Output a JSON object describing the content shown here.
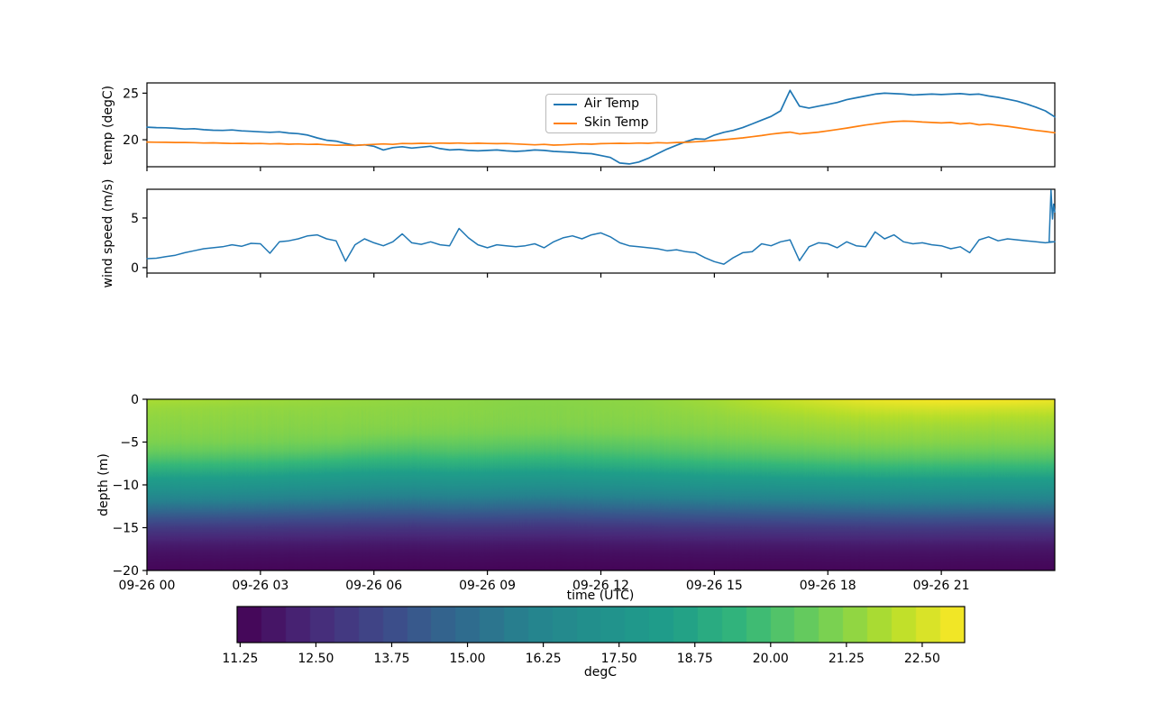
{
  "figure": {
    "background": "#ffffff",
    "accent_blue": "#1f77b4",
    "accent_orange": "#ff7f0e"
  },
  "legend": {
    "items": [
      {
        "label": "Air Temp",
        "color": "#1f77b4"
      },
      {
        "label": "Skin Temp",
        "color": "#ff7f0e"
      }
    ]
  },
  "chart_data": [
    {
      "id": "temp",
      "type": "line",
      "ylabel": "temp (degC)",
      "ylim": [
        17.1,
        26.1
      ],
      "yticks": [
        20,
        25
      ],
      "ytick_labels": [
        "20",
        "25"
      ],
      "xlim_hours": [
        0,
        24
      ],
      "x_hours_step": 0.25,
      "xtick_hours": [
        0,
        3,
        6,
        9,
        12,
        15,
        18,
        21
      ],
      "legend_position": "upper center",
      "series": [
        {
          "name": "Air Temp",
          "color": "#1f77b4",
          "values": [
            21.35,
            21.3,
            21.28,
            21.22,
            21.15,
            21.18,
            21.08,
            21.02,
            21.0,
            21.05,
            20.95,
            20.9,
            20.85,
            20.8,
            20.85,
            20.72,
            20.65,
            20.5,
            20.2,
            19.95,
            19.85,
            19.6,
            19.4,
            19.45,
            19.3,
            18.9,
            19.15,
            19.25,
            19.1,
            19.2,
            19.3,
            19.05,
            18.9,
            18.95,
            18.85,
            18.8,
            18.85,
            18.9,
            18.8,
            18.75,
            18.8,
            18.9,
            18.85,
            18.75,
            18.7,
            18.65,
            18.55,
            18.5,
            18.3,
            18.1,
            17.5,
            17.4,
            17.6,
            18.0,
            18.5,
            19.0,
            19.4,
            19.8,
            20.1,
            20.05,
            20.5,
            20.8,
            21.0,
            21.3,
            21.7,
            22.1,
            22.5,
            23.1,
            25.3,
            23.6,
            23.4,
            23.6,
            23.8,
            24.0,
            24.3,
            24.5,
            24.7,
            24.9,
            25.0,
            24.95,
            24.9,
            24.8,
            24.85,
            24.9,
            24.85,
            24.9,
            24.95,
            24.85,
            24.9,
            24.7,
            24.55,
            24.35,
            24.15,
            23.85,
            23.5,
            23.1,
            22.45
          ]
        },
        {
          "name": "Skin Temp",
          "color": "#ff7f0e",
          "values": [
            19.75,
            19.73,
            19.72,
            19.7,
            19.7,
            19.68,
            19.65,
            19.66,
            19.63,
            19.6,
            19.62,
            19.58,
            19.6,
            19.55,
            19.58,
            19.52,
            19.55,
            19.5,
            19.52,
            19.45,
            19.4,
            19.42,
            19.38,
            19.45,
            19.5,
            19.55,
            19.5,
            19.6,
            19.58,
            19.62,
            19.6,
            19.65,
            19.62,
            19.65,
            19.6,
            19.63,
            19.6,
            19.58,
            19.6,
            19.55,
            19.5,
            19.45,
            19.5,
            19.42,
            19.45,
            19.5,
            19.55,
            19.52,
            19.58,
            19.6,
            19.62,
            19.6,
            19.65,
            19.62,
            19.68,
            19.65,
            19.7,
            19.72,
            19.78,
            19.85,
            19.92,
            20.0,
            20.1,
            20.2,
            20.32,
            20.45,
            20.6,
            20.72,
            20.82,
            20.62,
            20.72,
            20.82,
            20.95,
            21.1,
            21.25,
            21.42,
            21.58,
            21.72,
            21.85,
            21.95,
            22.0,
            21.98,
            21.9,
            21.85,
            21.8,
            21.85,
            21.7,
            21.78,
            21.6,
            21.68,
            21.55,
            21.45,
            21.3,
            21.15,
            21.0,
            20.88,
            20.75
          ]
        }
      ]
    },
    {
      "id": "wind",
      "type": "line",
      "ylabel": "wind speed (m/s)",
      "ylim": [
        -0.55,
        7.9
      ],
      "yticks": [
        0,
        5
      ],
      "ytick_labels": [
        "0",
        "5"
      ],
      "xlim_hours": [
        0,
        24
      ],
      "x_hours_step": 0.25,
      "xtick_hours": [
        0,
        3,
        6,
        9,
        12,
        15,
        18,
        21
      ],
      "series": [
        {
          "name": "wind speed",
          "color": "#1f77b4",
          "values": [
            0.9,
            0.95,
            1.1,
            1.25,
            1.5,
            1.7,
            1.9,
            2.0,
            2.1,
            2.3,
            2.15,
            2.45,
            2.4,
            1.45,
            2.6,
            2.7,
            2.9,
            3.2,
            3.3,
            2.9,
            2.7,
            0.65,
            2.3,
            2.9,
            2.5,
            2.2,
            2.6,
            3.4,
            2.5,
            2.35,
            2.6,
            2.3,
            2.2,
            3.95,
            3.0,
            2.3,
            2.0,
            2.3,
            2.2,
            2.1,
            2.2,
            2.4,
            2.0,
            2.6,
            3.0,
            3.2,
            2.9,
            3.3,
            3.5,
            3.1,
            2.5,
            2.2,
            2.1,
            2.0,
            1.9,
            1.7,
            1.8,
            1.6,
            1.5,
            1.0,
            0.6,
            0.35,
            1.0,
            1.5,
            1.6,
            2.4,
            2.2,
            2.6,
            2.8,
            0.7,
            2.1,
            2.5,
            2.4,
            2.0,
            2.6,
            2.2,
            2.1,
            3.6,
            2.9,
            3.3,
            2.6,
            2.4,
            2.5,
            2.3,
            2.2,
            1.9,
            2.1,
            1.5,
            2.8,
            3.1,
            2.7,
            2.9,
            2.8,
            2.7,
            2.6,
            2.5,
            2.6
          ],
          "tail": [
            [
              23.85,
              2.6
            ],
            [
              23.9,
              7.8
            ],
            [
              23.94,
              4.9
            ],
            [
              23.97,
              6.4
            ],
            [
              24.0,
              5.6
            ]
          ]
        }
      ]
    },
    {
      "id": "depth-temp",
      "type": "heatmap",
      "ylabel": "depth (m)",
      "xlabel": "time (UTC)",
      "ylim": [
        -20,
        0
      ],
      "yticks": [
        0,
        -5,
        -10,
        -15,
        -20
      ],
      "ytick_labels": [
        "0",
        "−5",
        "−10",
        "−15",
        "−20"
      ],
      "xtick_hours": [
        0,
        3,
        6,
        9,
        12,
        15,
        18,
        21
      ],
      "xtick_labels": [
        "09-26 00",
        "09-26 03",
        "09-26 06",
        "09-26 09",
        "09-26 12",
        "09-26 15",
        "09-26 18",
        "09-26 21"
      ],
      "times_h": [
        0,
        1,
        2,
        3,
        4,
        5,
        6,
        7,
        8,
        9,
        10,
        11,
        12,
        13,
        14,
        15,
        16,
        17,
        18,
        19,
        20,
        21,
        22,
        23,
        24
      ],
      "depths": [
        0,
        -1,
        -2,
        -3,
        -4,
        -5,
        -6,
        -7,
        -8,
        -9,
        -10,
        -11,
        -12,
        -13,
        -14,
        -15,
        -16,
        -17,
        -18,
        -19,
        -20
      ],
      "values": [
        [
          21.8,
          21.75,
          21.7,
          21.6,
          21.55,
          21.5,
          21.45,
          21.4,
          21.35,
          21.3,
          21.25,
          21.25,
          21.3,
          21.35,
          21.5,
          21.7,
          22.0,
          22.3,
          22.6,
          22.85,
          23.0,
          23.1,
          23.1,
          23.05,
          22.9
        ],
        [
          21.55,
          21.5,
          21.45,
          21.4,
          21.4,
          21.35,
          21.35,
          21.3,
          21.3,
          21.25,
          21.2,
          21.2,
          21.25,
          21.3,
          21.4,
          21.55,
          21.8,
          22.0,
          22.2,
          22.4,
          22.5,
          22.55,
          22.5,
          22.45,
          22.4
        ],
        [
          21.4,
          21.38,
          21.35,
          21.32,
          21.3,
          21.3,
          21.28,
          21.25,
          21.25,
          21.2,
          21.18,
          21.18,
          21.2,
          21.25,
          21.3,
          21.4,
          21.55,
          21.7,
          21.85,
          21.95,
          22.0,
          22.05,
          22.0,
          21.95,
          21.9
        ],
        [
          21.3,
          21.28,
          21.27,
          21.25,
          21.22,
          21.2,
          21.2,
          21.18,
          21.15,
          21.12,
          21.1,
          21.1,
          21.12,
          21.15,
          21.2,
          21.28,
          21.38,
          21.5,
          21.6,
          21.65,
          21.7,
          21.7,
          21.68,
          21.65,
          21.6
        ],
        [
          21.2,
          21.18,
          21.15,
          21.12,
          21.1,
          21.1,
          21.05,
          21.0,
          21.0,
          20.95,
          20.95,
          20.9,
          20.95,
          21.0,
          21.05,
          21.1,
          21.2,
          21.3,
          21.35,
          21.4,
          21.45,
          21.45,
          21.4,
          21.4,
          21.35
        ],
        [
          21.05,
          21.0,
          21.0,
          20.95,
          20.9,
          20.85,
          20.7,
          20.6,
          20.65,
          20.6,
          20.55,
          20.5,
          20.55,
          20.6,
          20.7,
          20.8,
          20.9,
          21.0,
          21.1,
          21.15,
          21.2,
          21.2,
          21.15,
          21.15,
          21.1
        ],
        [
          20.7,
          20.65,
          20.6,
          20.55,
          20.5,
          20.35,
          20.2,
          20.1,
          20.2,
          20.15,
          20.1,
          20.05,
          20.1,
          20.2,
          20.3,
          20.4,
          20.5,
          20.6,
          20.7,
          20.75,
          20.8,
          20.8,
          20.78,
          20.75,
          20.7
        ],
        [
          20.1,
          20.05,
          20.0,
          19.95,
          19.85,
          19.7,
          19.55,
          19.5,
          19.6,
          19.55,
          19.5,
          19.45,
          19.55,
          19.65,
          19.75,
          19.85,
          19.95,
          20.05,
          20.15,
          20.2,
          20.25,
          20.25,
          20.2,
          20.2,
          20.15
        ],
        [
          19.4,
          19.35,
          19.3,
          19.25,
          19.1,
          18.95,
          18.85,
          18.8,
          18.9,
          18.85,
          18.8,
          18.75,
          18.85,
          18.95,
          19.05,
          19.15,
          19.25,
          19.35,
          19.45,
          19.5,
          19.55,
          19.55,
          19.5,
          19.5,
          19.45
        ],
        [
          18.6,
          18.55,
          18.5,
          18.45,
          18.3,
          18.15,
          18.05,
          18.0,
          18.1,
          18.05,
          18.0,
          17.95,
          18.05,
          18.15,
          18.25,
          18.35,
          18.45,
          18.55,
          18.6,
          18.65,
          18.7,
          18.7,
          18.68,
          18.65,
          18.6
        ],
        [
          17.8,
          17.75,
          17.7,
          17.6,
          17.5,
          17.35,
          17.25,
          17.2,
          17.3,
          17.25,
          17.2,
          17.15,
          17.25,
          17.35,
          17.45,
          17.55,
          17.6,
          17.7,
          17.75,
          17.8,
          17.85,
          17.85,
          17.8,
          17.8,
          17.75
        ],
        [
          16.9,
          16.85,
          16.8,
          16.7,
          16.6,
          16.45,
          16.35,
          16.3,
          16.4,
          16.35,
          16.3,
          16.25,
          16.35,
          16.45,
          16.55,
          16.6,
          16.7,
          16.75,
          16.8,
          16.85,
          16.9,
          16.9,
          16.85,
          16.85,
          16.8
        ],
        [
          15.9,
          15.85,
          15.8,
          15.7,
          15.6,
          15.5,
          15.4,
          15.35,
          15.45,
          15.4,
          15.35,
          15.3,
          15.4,
          15.5,
          15.55,
          15.6,
          15.7,
          15.75,
          15.8,
          15.85,
          15.9,
          15.9,
          15.85,
          15.85,
          15.8
        ],
        [
          14.9,
          14.85,
          14.8,
          14.72,
          14.65,
          14.55,
          14.5,
          14.45,
          14.55,
          14.5,
          14.45,
          14.4,
          14.5,
          14.55,
          14.6,
          14.65,
          14.7,
          14.75,
          14.8,
          14.85,
          14.9,
          14.9,
          14.85,
          14.85,
          14.8
        ],
        [
          13.95,
          13.9,
          13.85,
          13.8,
          13.75,
          13.7,
          13.65,
          13.6,
          13.68,
          13.65,
          13.6,
          13.58,
          13.65,
          13.7,
          13.75,
          13.78,
          13.82,
          13.85,
          13.9,
          13.92,
          13.95,
          13.95,
          13.9,
          13.9,
          13.88
        ],
        [
          13.15,
          13.1,
          13.08,
          13.05,
          13.0,
          12.98,
          12.95,
          12.9,
          12.95,
          12.92,
          12.9,
          12.88,
          12.92,
          12.95,
          13.0,
          13.02,
          13.05,
          13.08,
          13.1,
          13.12,
          13.15,
          13.15,
          13.1,
          13.1,
          13.08
        ],
        [
          12.55,
          12.52,
          12.5,
          12.48,
          12.45,
          12.42,
          12.4,
          12.38,
          12.42,
          12.4,
          12.38,
          12.35,
          12.4,
          12.42,
          12.45,
          12.48,
          12.5,
          12.52,
          12.55,
          12.55,
          12.58,
          12.58,
          12.55,
          12.55,
          12.52
        ],
        [
          12.05,
          12.02,
          12.0,
          11.98,
          11.97,
          11.95,
          11.93,
          11.92,
          11.95,
          11.93,
          11.92,
          11.9,
          11.93,
          11.95,
          11.97,
          11.98,
          12.0,
          12.02,
          12.03,
          12.05,
          12.05,
          12.05,
          12.03,
          12.03,
          12.0
        ],
        [
          11.72,
          11.7,
          11.7,
          11.68,
          11.67,
          11.65,
          11.65,
          11.63,
          11.65,
          11.64,
          11.63,
          11.62,
          11.64,
          11.65,
          11.67,
          11.68,
          11.7,
          11.7,
          11.72,
          11.72,
          11.73,
          11.73,
          11.72,
          11.72,
          11.7
        ],
        [
          11.52,
          11.5,
          11.5,
          11.49,
          11.48,
          11.47,
          11.47,
          11.46,
          11.47,
          11.47,
          11.46,
          11.45,
          11.46,
          11.47,
          11.48,
          11.49,
          11.5,
          11.5,
          11.52,
          11.52,
          11.52,
          11.52,
          11.5,
          11.5,
          11.5
        ],
        [
          11.38,
          11.37,
          11.36,
          11.35,
          11.35,
          11.34,
          11.33,
          11.33,
          11.34,
          11.33,
          11.33,
          11.32,
          11.33,
          11.34,
          11.35,
          11.35,
          11.36,
          11.37,
          11.38,
          11.38,
          11.38,
          11.38,
          11.37,
          11.37,
          11.36
        ]
      ],
      "noise_amplitude": 0.13,
      "colormap": [
        [
          0.0,
          "#440154"
        ],
        [
          0.1,
          "#482878"
        ],
        [
          0.2,
          "#3e4989"
        ],
        [
          0.3,
          "#31688e"
        ],
        [
          0.4,
          "#26828e"
        ],
        [
          0.5,
          "#21918c"
        ],
        [
          0.6,
          "#1f9e89"
        ],
        [
          0.7,
          "#35b779"
        ],
        [
          0.8,
          "#6ece58"
        ],
        [
          0.9,
          "#b5de2b"
        ],
        [
          1.0,
          "#fde725"
        ]
      ],
      "colorbar": {
        "label": "degC",
        "vmin": 11.2,
        "vmax": 23.2,
        "segments": 30,
        "tick_values": [
          11.25,
          12.5,
          13.75,
          15.0,
          16.25,
          17.5,
          18.75,
          20.0,
          21.25,
          22.5
        ],
        "tick_labels": [
          "11.25",
          "12.50",
          "13.75",
          "15.00",
          "16.25",
          "17.50",
          "18.75",
          "20.00",
          "21.25",
          "22.50"
        ]
      }
    }
  ]
}
